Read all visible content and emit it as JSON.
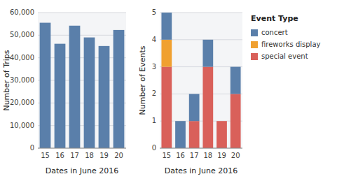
{
  "chart_data": [
    {
      "type": "bar",
      "categories": [
        "15",
        "16",
        "17",
        "18",
        "19",
        "20"
      ],
      "values": [
        55500,
        46200,
        54200,
        49000,
        45200,
        52300
      ],
      "color": "#5a7faa",
      "x_label": "Dates in June 2016",
      "y_label": "Number of Trips",
      "ylim": [
        0,
        60000
      ],
      "yticks": [
        0,
        {
          "value": 10000,
          "label": "10,000"
        },
        {
          "value": 20000,
          "label": "20,000"
        },
        {
          "value": 30000,
          "label": "30,000"
        },
        {
          "value": 40000,
          "label": "40,000"
        },
        {
          "value": 50000,
          "label": "50,000"
        },
        {
          "value": 60000,
          "label": "60,000"
        }
      ],
      "grid": true
    },
    {
      "type": "bar",
      "stacked": true,
      "categories": [
        "15",
        "16",
        "17",
        "18",
        "19",
        "20"
      ],
      "series": [
        {
          "name": "special event",
          "color": "#d9605a",
          "values": [
            3,
            0,
            1,
            3,
            1,
            2
          ]
        },
        {
          "name": "fireworks display",
          "color": "#f0a030",
          "values": [
            1,
            0,
            0,
            0,
            0,
            0
          ]
        },
        {
          "name": "concert",
          "color": "#5a7faa",
          "values": [
            1,
            1,
            1,
            1,
            0,
            1
          ]
        }
      ],
      "x_label": "Dates in June 2016",
      "y_label": "Number of Events",
      "legend_title": "Event Type",
      "legend": "right",
      "ylim": [
        0,
        5
      ],
      "yticks": [
        0,
        1,
        2,
        3,
        4,
        5
      ],
      "grid": true
    }
  ]
}
